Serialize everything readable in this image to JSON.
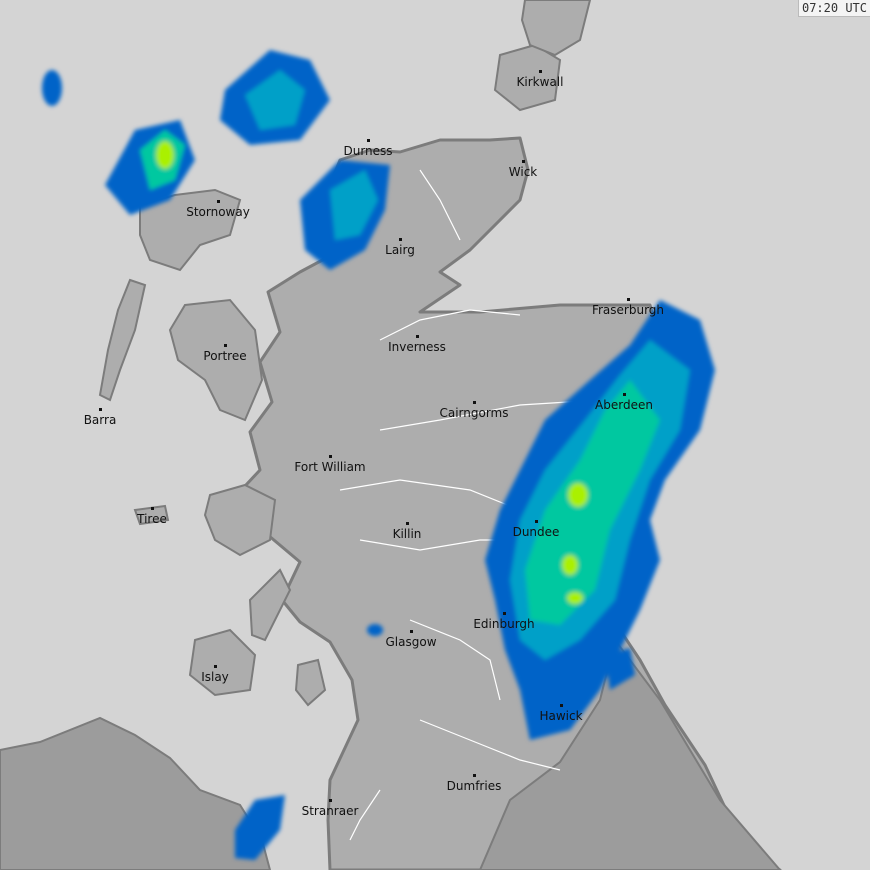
{
  "timestamp": "07:20 UTC",
  "colors": {
    "sea": "#d4d4d4",
    "land": "#adadad",
    "neighbour_land": "#9c9c9c",
    "coastline": "#7c7c7c",
    "rivers": "#ffffff",
    "radar_light": "#0064c8",
    "radar_medium": "#00a0c8",
    "radar_heavy": "#00c8a0",
    "radar_intense": "#aaf000"
  },
  "cities": [
    {
      "name": "Kirkwall"
    },
    {
      "name": "Wick"
    },
    {
      "name": "Durness"
    },
    {
      "name": "Stornoway"
    },
    {
      "name": "Lairg"
    },
    {
      "name": "Fraserburgh"
    },
    {
      "name": "Inverness"
    },
    {
      "name": "Portree"
    },
    {
      "name": "Aberdeen"
    },
    {
      "name": "Barra"
    },
    {
      "name": "Cairngorms"
    },
    {
      "name": "Fort William"
    },
    {
      "name": "Tiree"
    },
    {
      "name": "Killin"
    },
    {
      "name": "Dundee"
    },
    {
      "name": "Edinburgh"
    },
    {
      "name": "Glasgow"
    },
    {
      "name": "Islay"
    },
    {
      "name": "Hawick"
    },
    {
      "name": "Dumfries"
    },
    {
      "name": "Stranraer"
    }
  ]
}
